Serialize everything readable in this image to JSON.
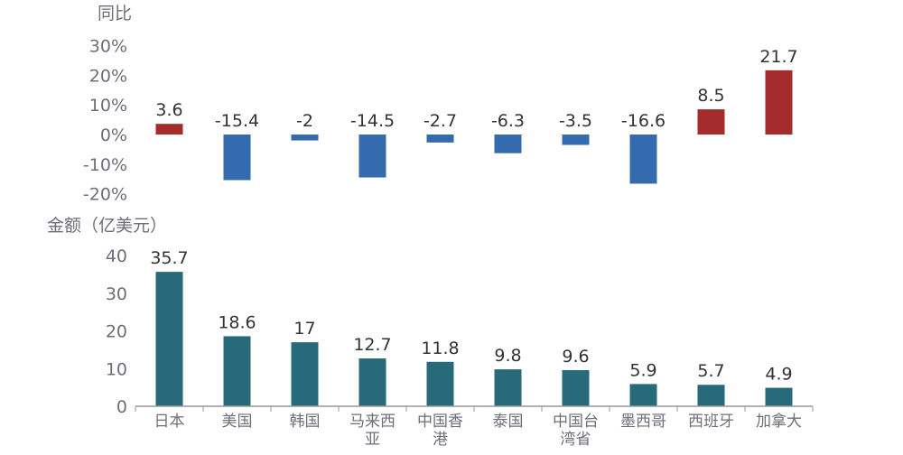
{
  "chart_data": [
    {
      "type": "bar",
      "title": "",
      "ylabel": "同比",
      "ylim": [
        -20,
        30
      ],
      "yticks": [
        "30%",
        "20%",
        "10%",
        "0%",
        "-10%",
        "-20%"
      ],
      "categories": [
        "日本",
        "美国",
        "韩国",
        "马来西亚",
        "中国香港",
        "泰国",
        "中国台湾省",
        "墨西哥",
        "西班牙",
        "加拿大"
      ],
      "values": [
        3.6,
        -15.4,
        -2,
        -14.5,
        -2.7,
        -6.3,
        -3.5,
        -16.6,
        8.5,
        21.7
      ],
      "value_labels": [
        "3.6",
        "-15.4",
        "-2",
        "-14.5",
        "-2.7",
        "-6.3",
        "-3.5",
        "-16.6",
        "8.5",
        "21.7"
      ],
      "colors": {
        "positive": "#a52c2c",
        "negative": "#346aae"
      }
    },
    {
      "type": "bar",
      "title": "",
      "ylabel": "金额（亿美元）",
      "ylim": [
        0,
        40
      ],
      "yticks": [
        "40",
        "30",
        "20",
        "10",
        "0"
      ],
      "categories": [
        "日本",
        "美国",
        "韩国",
        "马来西亚",
        "中国香港",
        "泰国",
        "中国台湾省",
        "墨西哥",
        "西班牙",
        "加拿大"
      ],
      "category_lines": [
        [
          "日本"
        ],
        [
          "美国"
        ],
        [
          "韩国"
        ],
        [
          "马来西",
          "亚"
        ],
        [
          "中国香",
          "港"
        ],
        [
          "泰国"
        ],
        [
          "中国台",
          "湾省"
        ],
        [
          "墨西哥"
        ],
        [
          "西班牙"
        ],
        [
          "加拿大"
        ]
      ],
      "values": [
        35.7,
        18.6,
        17,
        12.7,
        11.8,
        9.8,
        9.6,
        5.9,
        5.7,
        4.9
      ],
      "value_labels": [
        "35.7",
        "18.6",
        "17",
        "12.7",
        "11.8",
        "9.8",
        "9.6",
        "5.9",
        "5.7",
        "4.9"
      ],
      "colors": {
        "bar": "#276a7a",
        "axis": "#999999"
      }
    }
  ]
}
